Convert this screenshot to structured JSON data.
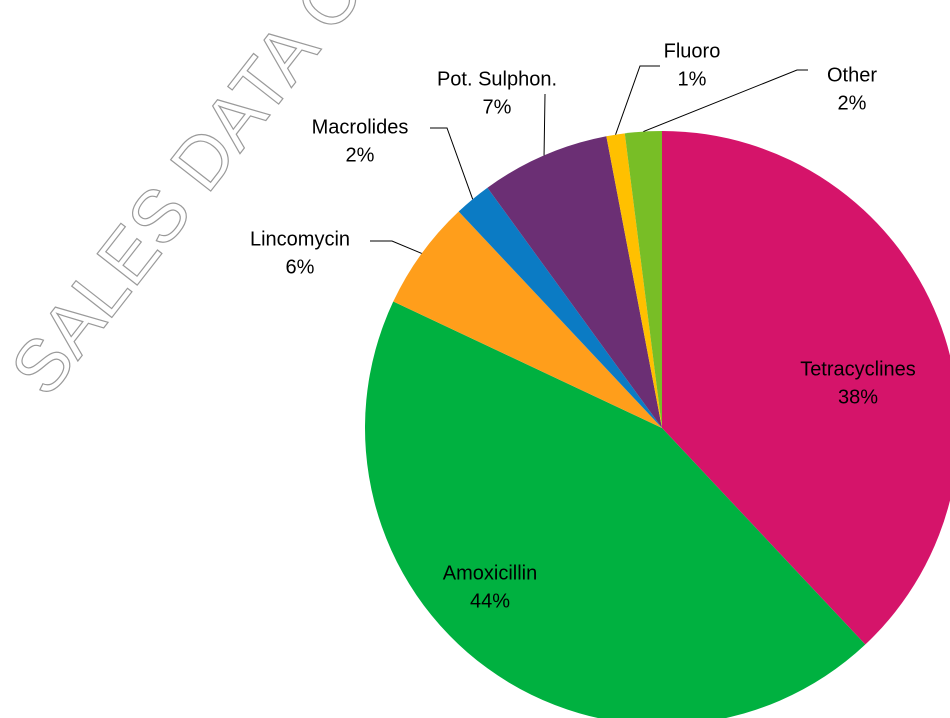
{
  "chart_data": {
    "type": "pie",
    "watermark": "SALES DATA CO",
    "categories": [
      "Tetracyclines",
      "Amoxicillin",
      "Lincomycin",
      "Macrolides",
      "Pot. Sulphon.",
      "Fluoro",
      "Other"
    ],
    "values": [
      38,
      44,
      6,
      2,
      7,
      1,
      2
    ],
    "value_labels": [
      "38%",
      "44%",
      "6%",
      "2%",
      "7%",
      "1%",
      "2%"
    ],
    "colors": [
      "#d5146a",
      "#00b140",
      "#ff9e1b",
      "#0b7bc4",
      "#6b2f74",
      "#ffc000",
      "#78be26"
    ]
  }
}
